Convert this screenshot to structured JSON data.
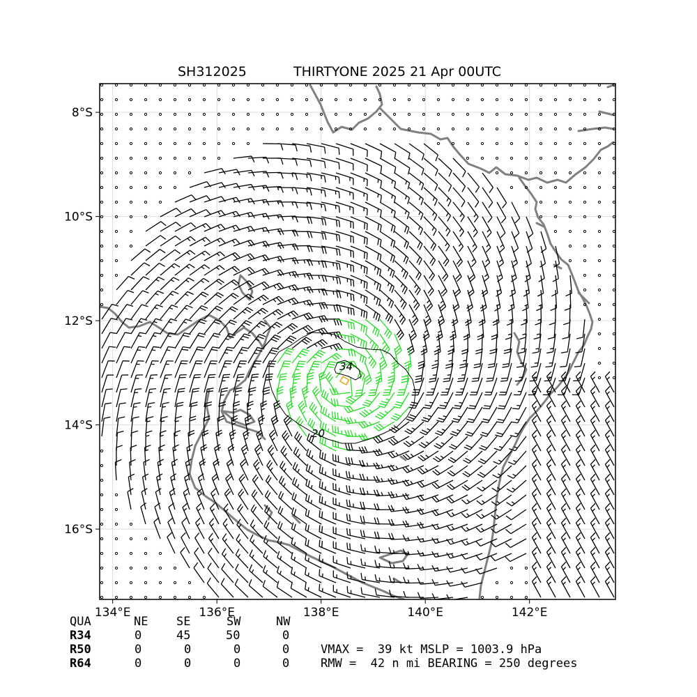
{
  "title": {
    "storm_id": "SH312025",
    "text": "THIRTYONE 2025 21 Apr 00UTC"
  },
  "map": {
    "lon_range": [
      133.75,
      143.65
    ],
    "lat_range": [
      -17.35,
      -7.45
    ],
    "lon_ticks": [
      134,
      136,
      138,
      140,
      142
    ],
    "lon_tick_labels": [
      "134°E",
      "136°E",
      "138°E",
      "140°E",
      "142°E"
    ],
    "lat_ticks": [
      -8,
      -10,
      -12,
      -14,
      -16
    ],
    "lat_tick_labels": [
      "8°S",
      "10°S",
      "12°S",
      "14°S",
      "16°S"
    ],
    "grid": true,
    "coastline_color": "#808080",
    "gale_barb_color": "#22dd22",
    "weak_barb_color": "#000000",
    "center_marker_color": "#e8a317",
    "storm_center": {
      "lon": 138.45,
      "lat": -13.15
    },
    "contours": [
      {
        "label": "34"
      },
      {
        "label": "20"
      }
    ]
  },
  "radii_table": {
    "header": [
      "QUA",
      "NE",
      "SE",
      "SW",
      "NW"
    ],
    "rows": [
      {
        "label": "R34",
        "values": [
          "0",
          "45",
          "50",
          "0"
        ]
      },
      {
        "label": "R50",
        "values": [
          "0",
          "0",
          "0",
          "0"
        ]
      },
      {
        "label": "R64",
        "values": [
          "0",
          "0",
          "0",
          "0"
        ]
      }
    ]
  },
  "stats": {
    "line1": "VMAX =  39 kt MSLP = 1003.9 hPa",
    "line2": "RMW =  42 n mi BEARING = 250 degrees"
  }
}
